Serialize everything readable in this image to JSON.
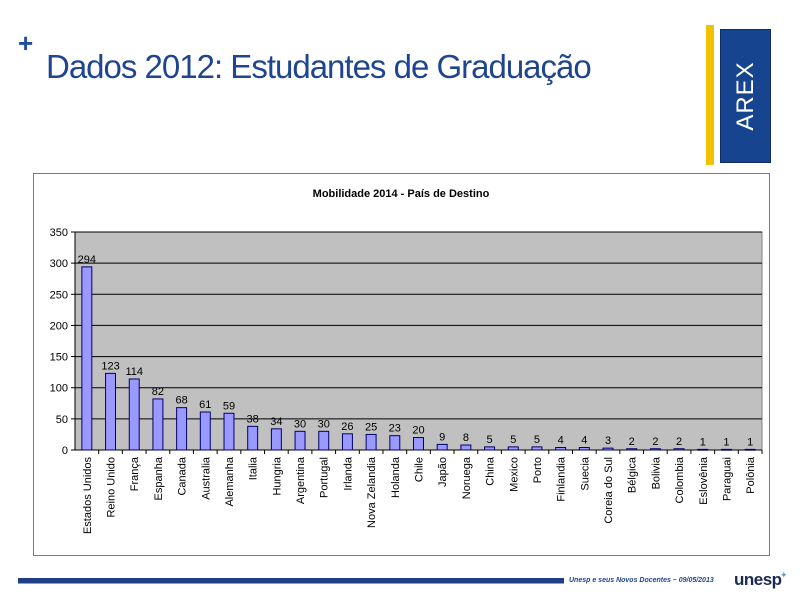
{
  "slide": {
    "plus": "+",
    "title": "Dados 2012: Estudantes de Graduação"
  },
  "logo": {
    "text": "AREX"
  },
  "footer": {
    "caption": "Unesp e seus Novos Docentes – 09/05/2013",
    "brand": "unesp"
  },
  "chart_data": {
    "type": "bar",
    "title": "Mobilidade 2014 - País de Destino",
    "xlabel": "",
    "ylabel": "",
    "ylim": [
      0,
      350
    ],
    "yticks": [
      0,
      50,
      100,
      150,
      200,
      250,
      300,
      350
    ],
    "grid": true,
    "categories": [
      "Estados Unidos",
      "Reino Unido",
      "França",
      "Espanha",
      "Canada",
      "Australia",
      "Alemanha",
      "Italia",
      "Hungria",
      "Argentina",
      "Portugal",
      "Irlanda",
      "Nova Zelandia",
      "Holanda",
      "Chile",
      "Japão",
      "Noruega",
      "China",
      "Mexico",
      "Porto",
      "Finlandia",
      "Suecia",
      "Coreia do Sul",
      "Bélgica",
      "Bolivia",
      "Colombia",
      "Eslovênia",
      "Paraguai",
      "Polônia"
    ],
    "values": [
      294,
      123,
      114,
      82,
      68,
      61,
      59,
      38,
      34,
      30,
      30,
      26,
      25,
      23,
      20,
      9,
      8,
      5,
      5,
      5,
      4,
      4,
      3,
      2,
      2,
      2,
      1,
      1,
      1
    ],
    "bar_color": "#9999ff",
    "plot_background": "#c0c0c0"
  }
}
